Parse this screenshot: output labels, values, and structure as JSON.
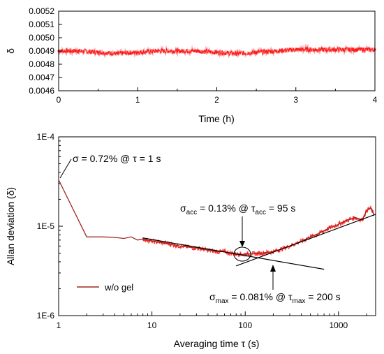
{
  "chart_data": [
    {
      "type": "scatter",
      "xlabel": "Time (h)",
      "ylabel": "δ",
      "xlim": [
        0,
        4
      ],
      "ylim": [
        0.0046,
        0.0052
      ],
      "x_ticks": [
        "0",
        "1",
        "2",
        "3",
        "4"
      ],
      "y_ticks": [
        "0.0046",
        "0.0047",
        "0.0048",
        "0.0049",
        "0.0050",
        "0.0051",
        "0.0052"
      ],
      "series_color": "#ff1a1a",
      "series": [
        {
          "x": [
            0,
            0.25,
            0.5,
            0.75,
            1.0,
            1.25,
            1.5,
            1.75,
            2.0,
            2.25,
            2.5,
            2.75,
            3.0,
            3.25,
            3.5,
            3.75,
            4.0
          ],
          "values": [
            0.0049,
            0.0049,
            0.00489,
            0.00488,
            0.00489,
            0.0049,
            0.0049,
            0.0049,
            0.00489,
            0.00488,
            0.00489,
            0.0049,
            0.00491,
            0.00491,
            0.00491,
            0.00491,
            0.00491
          ]
        }
      ]
    },
    {
      "type": "line",
      "xlabel": "Averaging time τ (s)",
      "ylabel": "Allan deviation (δ)",
      "x_scale": "log",
      "y_scale": "log",
      "xlim": [
        1,
        2500
      ],
      "ylim": [
        1e-06,
        0.0001
      ],
      "x_ticks": [
        "1",
        "10",
        "100",
        "1000"
      ],
      "y_ticks": [
        "1E-6",
        "1E-5",
        "1E-4"
      ],
      "series": [
        {
          "name": "w/o gel",
          "color": "#a0281e",
          "x": [
            1,
            2,
            3,
            4,
            5,
            6,
            7,
            8,
            10,
            15,
            20,
            30,
            40,
            50,
            60,
            70,
            80,
            90,
            95,
            100,
            120,
            150,
            200,
            250,
            300,
            400,
            500,
            600,
            700,
            800,
            1000,
            1200,
            1500,
            1800,
            2000,
            2200,
            2400
          ],
          "values": [
            3.3e-05,
            7.6e-06,
            7.6e-06,
            7.5e-06,
            7.3e-06,
            7.6e-06,
            7e-06,
            7.2e-06,
            6.8e-06,
            6.4e-06,
            6e-06,
            5.7e-06,
            5.4e-06,
            5.2e-06,
            5.2e-06,
            5e-06,
            4.9e-06,
            4.9e-06,
            4.8e-06,
            4.9e-06,
            4.9e-06,
            5e-06,
            5.2e-06,
            5.6e-06,
            6e-06,
            6.8e-06,
            7.6e-06,
            8.2e-06,
            8.9e-06,
            9.6e-06,
            1.05e-05,
            1.15e-05,
            1.25e-05,
            1.18e-05,
            1.5e-05,
            1.6e-05,
            1.35e-05
          ]
        },
        {
          "name": "fit line 1",
          "color": "#000000",
          "x": [
            8,
            700
          ],
          "values": [
            7.4e-06,
            3.3e-06
          ]
        },
        {
          "name": "fit line 2",
          "color": "#000000",
          "x": [
            80,
            2500
          ],
          "values": [
            3.6e-06,
            1.36e-05
          ]
        }
      ],
      "legend": [
        "w/o gel"
      ],
      "legend_position": "bottom-left",
      "annotations": [
        {
          "text": "σ = 0.72% @ τ = 1 s",
          "x": 1,
          "y": 3.3e-05
        },
        {
          "text": "σacc = 0.13% @ τacc = 95 s",
          "x": 95,
          "y": 4.8e-06
        },
        {
          "text": "σmax = 0.081% @ τmax = 200 s",
          "x": 200,
          "y": 4.3e-06
        }
      ]
    }
  ],
  "annotations": {
    "ann1": "σ = 0.72% @ τ = 1 s",
    "ann2": {
      "sigma": "σ",
      "sigma_sub": "acc",
      "mid": " = 0.13% @ ",
      "tau": "τ",
      "tau_sub": "acc",
      "end": " = 95 s"
    },
    "ann3": {
      "sigma": "σ",
      "sigma_sub": "max",
      "mid": " = 0.081% @ ",
      "tau": "τ",
      "tau_sub": "max",
      "end": " = 200 s"
    }
  }
}
